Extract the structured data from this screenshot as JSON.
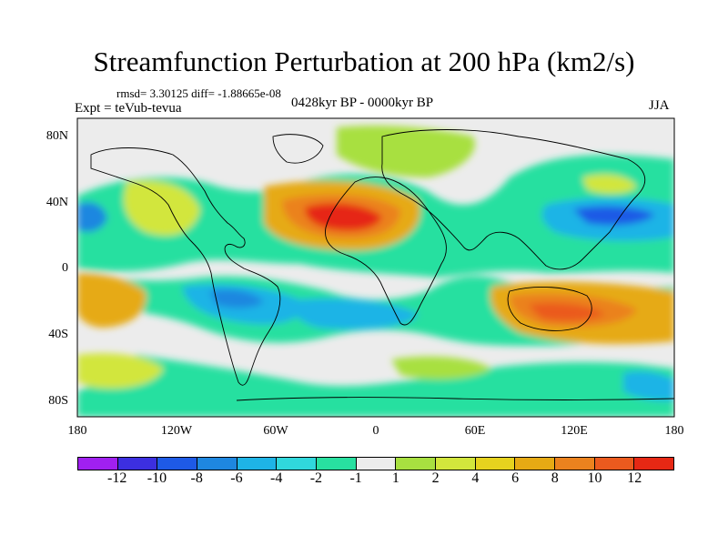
{
  "title": "Streamfunction Perturbation at 200 hPa (km2/s)",
  "rmsd_line": "rmsd= 3.30125 diff= -1.88665e-08",
  "expt_line": "Expt = teVub-tevua",
  "period": "0428kyr BP - 0000kyr BP",
  "season": "JJA",
  "lat_labels": [
    "80N",
    "40N",
    "0",
    "40S",
    "80S"
  ],
  "lon_labels": [
    "180",
    "120W",
    "60W",
    "0",
    "60E",
    "120E",
    "180"
  ],
  "colorbar": {
    "colors": [
      "#a020f0",
      "#3c2fe0",
      "#1e5ae6",
      "#1e87e0",
      "#1eb4e6",
      "#30d8dc",
      "#28e0a0",
      "#ececec",
      "#a8e040",
      "#d2e63c",
      "#e6d21e",
      "#e6aa14",
      "#eb821e",
      "#eb5a1e",
      "#e62814"
    ],
    "labels": [
      "-12",
      "-10",
      "-8",
      "-6",
      "-4",
      "-2",
      "-1",
      "1",
      "2",
      "4",
      "6",
      "8",
      "10",
      "12"
    ]
  }
}
